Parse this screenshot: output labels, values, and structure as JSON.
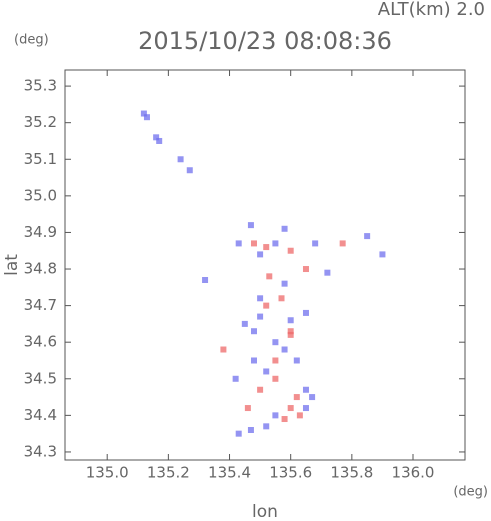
{
  "chart_data": {
    "type": "scatter",
    "title": "2015/10/23 08:08:36",
    "annotation": "ALT(km) 2.0",
    "y_unit": "(deg)",
    "x_unit": "(deg)",
    "xlabel": "lon",
    "ylabel": "lat",
    "xlim": [
      134.862,
      136.17
    ],
    "ylim": [
      34.278,
      35.344
    ],
    "xticks": [
      {
        "value": 135.0,
        "label": "135.0"
      },
      135.2,
      135.4,
      135.6,
      135.8,
      {
        "value": 136.0,
        "label": "136.0"
      }
    ],
    "yticks": [
      34.3,
      34.4,
      34.5,
      34.6,
      34.7,
      34.8,
      34.9,
      {
        "value": 35.0,
        "label": "35.0"
      },
      35.1,
      35.2,
      35.3
    ],
    "series": [
      {
        "color": "#7070ee",
        "x": [
          135.12,
          135.13,
          135.16,
          135.17,
          135.24,
          135.27,
          135.43,
          135.47,
          135.5,
          135.55,
          135.58,
          135.68,
          135.72,
          135.85,
          135.9,
          135.45,
          135.48,
          135.5,
          135.55,
          135.58,
          135.6,
          135.62,
          135.48,
          135.52,
          135.65,
          135.67,
          135.42,
          135.43,
          135.47,
          135.52,
          135.55,
          135.65,
          135.32,
          135.5,
          135.65,
          135.58
        ],
        "y": [
          35.225,
          35.215,
          35.16,
          35.15,
          35.1,
          35.07,
          34.87,
          34.92,
          34.84,
          34.87,
          34.91,
          34.87,
          34.79,
          34.89,
          34.84,
          34.65,
          34.63,
          34.67,
          34.6,
          34.58,
          34.66,
          34.55,
          34.55,
          34.52,
          34.47,
          34.45,
          34.5,
          34.35,
          34.36,
          34.37,
          34.4,
          34.42,
          34.77,
          34.72,
          34.68,
          34.76
        ]
      },
      {
        "color": "#ee6a6a",
        "x": [
          135.48,
          135.52,
          135.6,
          135.77,
          135.65,
          135.52,
          135.57,
          135.38,
          135.6,
          135.55,
          135.5,
          135.55,
          135.62,
          135.46,
          135.6,
          135.58,
          135.63,
          135.53,
          135.6
        ],
        "y": [
          34.87,
          34.86,
          34.85,
          34.87,
          34.8,
          34.7,
          34.72,
          34.58,
          34.62,
          34.55,
          34.47,
          34.5,
          34.45,
          34.42,
          34.42,
          34.39,
          34.4,
          34.78,
          34.63
        ]
      }
    ]
  }
}
